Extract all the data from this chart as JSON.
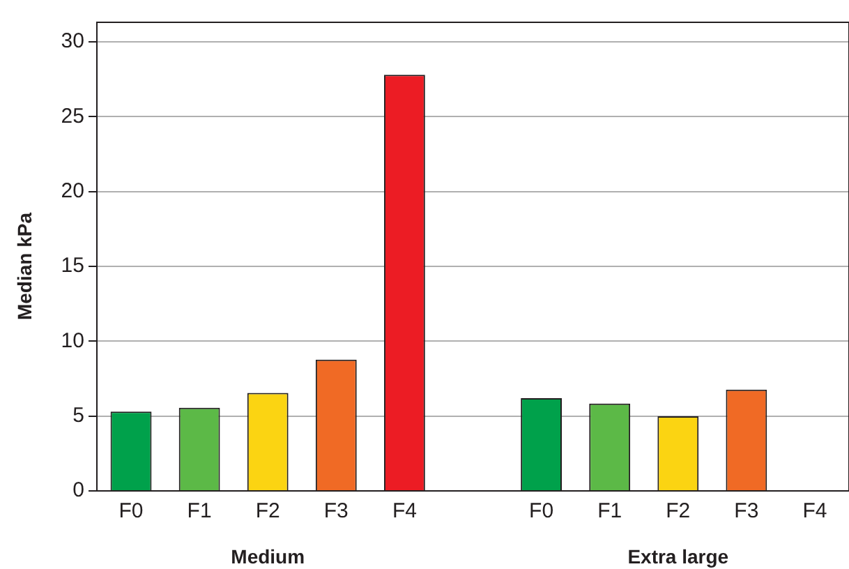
{
  "chart_data": {
    "type": "bar",
    "ylabel": "Median kPa",
    "categories": [
      "F0",
      "F1",
      "F2",
      "F3",
      "F4",
      null,
      "F0",
      "F1",
      "F2",
      "F3",
      "F4"
    ],
    "series": [
      {
        "colors": [
          "#00a14b",
          "#5cb947",
          "#fbd412",
          "#f06a25",
          "#ec1c24",
          null,
          "#00a14b",
          "#5cb947",
          "#fbd412",
          "#f06a25",
          null
        ],
        "values": [
          5.3,
          5.55,
          6.55,
          8.77,
          27.8,
          null,
          6.2,
          5.84,
          4.98,
          6.77,
          null
        ]
      }
    ],
    "ylim": [
      0,
      30
    ],
    "yticks": [
      0,
      5,
      10,
      15,
      20,
      25,
      30
    ],
    "grid": "y",
    "legend": false,
    "annotations": [
      "Medium",
      "Extra large"
    ]
  }
}
